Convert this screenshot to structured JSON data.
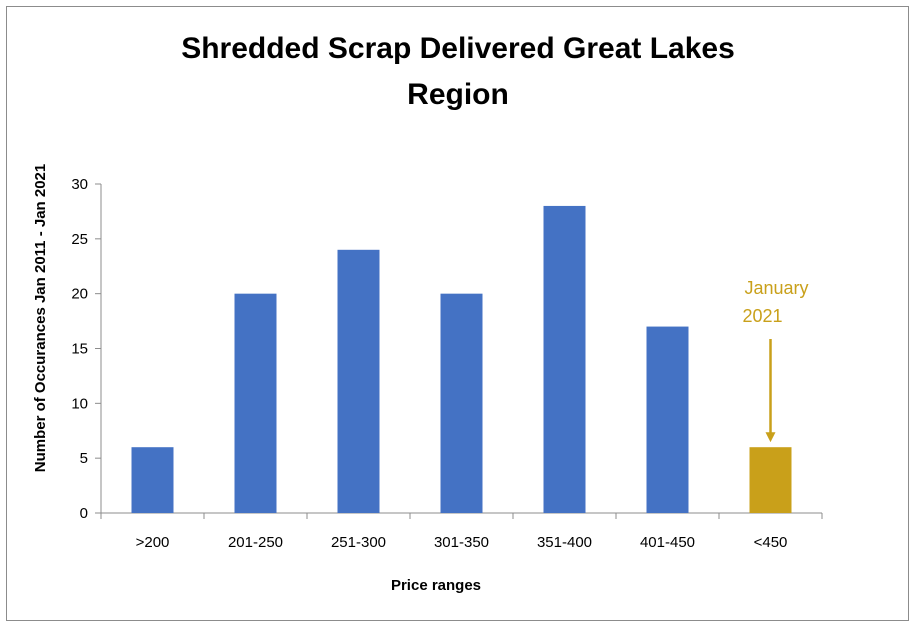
{
  "chart_data": {
    "type": "bar",
    "title_lines": [
      "Shredded Scrap Delivered Great Lakes",
      "Region"
    ],
    "xlabel": "Price ranges",
    "ylabel": "Number of Occurances Jan 2011 - Jan 2021",
    "categories": [
      ">200",
      "201-250",
      "251-300",
      "301-350",
      "351-400",
      "401-450",
      "<450"
    ],
    "values": [
      6,
      20,
      24,
      20,
      28,
      17,
      6
    ],
    "ylim": [
      0,
      30
    ],
    "yticks": [
      0,
      5,
      10,
      15,
      20,
      25,
      30
    ],
    "grid": false,
    "legend": "none",
    "colors": {
      "bar": "#4472c4",
      "highlight": "#c9a01a",
      "axis": "#8c8c8c"
    },
    "highlight_index": 6,
    "annotation": {
      "lines": [
        "January",
        "2021"
      ],
      "category_index": 6
    }
  }
}
